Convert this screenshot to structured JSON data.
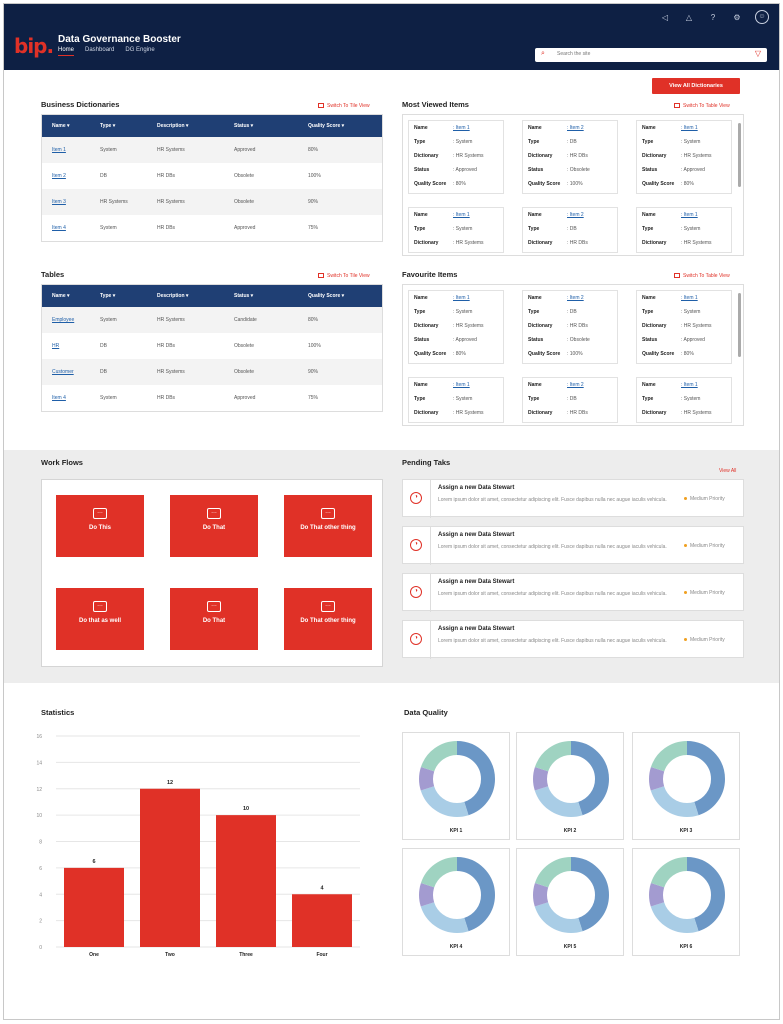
{
  "header": {
    "logo": "bip.",
    "title": "Data Governance Booster",
    "nav": [
      "Home",
      "Dashboard",
      "DG Engine"
    ],
    "search_placeholder": "Search the site",
    "icons": [
      "megaphone-icon",
      "bell-icon",
      "help-icon",
      "gear-icon",
      "user-avatar-icon"
    ]
  },
  "actions": {
    "view_all_dictionaries": "View All Dictionaries",
    "view_all": "View All"
  },
  "switch": {
    "tile": "Switch To Tile View",
    "table": "Switch To Table View"
  },
  "business_dictionaries": {
    "title": "Business Dictionaries",
    "columns": [
      "Name",
      "Type",
      "Description",
      "Status",
      "Quality Score"
    ],
    "rows": [
      [
        "Item 1",
        "System",
        "HR Systems",
        "Approved",
        "80%"
      ],
      [
        "Item 2",
        "DB",
        "HR DBs",
        "Obsolete",
        "100%"
      ],
      [
        "Item 3",
        "HR Systems",
        "HR Systems",
        "Obsolete",
        "90%"
      ],
      [
        "Item 4",
        "System",
        "HR DBs",
        "Approved",
        "75%"
      ]
    ]
  },
  "tables": {
    "title": "Tables",
    "columns": [
      "Name",
      "Type",
      "Description",
      "Status",
      "Quality Score"
    ],
    "rows": [
      [
        "Employee",
        "System",
        "HR Systems",
        "Candidate",
        "80%"
      ],
      [
        "HR",
        "DB",
        "HR DBs",
        "Obsolete",
        "100%"
      ],
      [
        "Customer",
        "DB",
        "HR Systems",
        "Obsolete",
        "90%"
      ],
      [
        "Item 4",
        "System",
        "HR DBs",
        "Approved",
        "75%"
      ]
    ]
  },
  "card_labels": {
    "name": "Name",
    "type": "Type",
    "dictionary": "Dictionary",
    "status": "Status",
    "quality": "Quality Score"
  },
  "most_viewed": {
    "title": "Most Viewed Items",
    "cards": [
      {
        "name": "Item 1",
        "type": "System",
        "dictionary": "HR Systems",
        "status": "Approved",
        "quality": "80%"
      },
      {
        "name": "Item 2",
        "type": "DB",
        "dictionary": "HR DBs",
        "status": "Obsolete",
        "quality": "100%"
      },
      {
        "name": "Item 1",
        "type": "System",
        "dictionary": "HR Systems",
        "status": "Approved",
        "quality": "80%"
      },
      {
        "name": "Item 1",
        "type": "System",
        "dictionary": "HR Systems"
      },
      {
        "name": "Item 2",
        "type": "DB",
        "dictionary": "HR DBs"
      },
      {
        "name": "Item 1",
        "type": "System",
        "dictionary": "HR Systems"
      }
    ]
  },
  "favourites": {
    "title": "Favourite Items",
    "cards": [
      {
        "name": "Item 1",
        "type": "System",
        "dictionary": "HR Systems",
        "status": "Approved",
        "quality": "80%"
      },
      {
        "name": "Item 2",
        "type": "DB",
        "dictionary": "HR DBs",
        "status": "Obsolete",
        "quality": "100%"
      },
      {
        "name": "Item 1",
        "type": "System",
        "dictionary": "HR Systems",
        "status": "Approved",
        "quality": "80%"
      },
      {
        "name": "Item 1",
        "type": "System",
        "dictionary": "HR Systems"
      },
      {
        "name": "Item 2",
        "type": "DB",
        "dictionary": "HR DBs"
      },
      {
        "name": "Item 1",
        "type": "System",
        "dictionary": "HR Systems"
      }
    ]
  },
  "workflows": {
    "title": "Work Flows",
    "tiles": [
      "Do This",
      "Do That",
      "Do That other thing",
      "Do that as well",
      "Do That",
      "Do That other thing"
    ]
  },
  "pending": {
    "title": "Pending Taks",
    "tasks": [
      {
        "title": "Assign a new Data Stewart",
        "desc": "Lorem ipsum dolor sit amet, consectetur adipiscing elit. Fusce dapibus nulla nec augue iaculis vehicula.",
        "priority": "Medium Priority"
      },
      {
        "title": "Assign a new Data Stewart",
        "desc": "Lorem ipsum dolor sit amet, consectetur adipiscing elit. Fusce dapibus nulla nec augue iaculis vehicula.",
        "priority": "Medium Priority"
      },
      {
        "title": "Assign a new Data Stewart",
        "desc": "Lorem ipsum dolor sit amet, consectetur adipiscing elit. Fusce dapibus nulla nec augue iaculis vehicula.",
        "priority": "Medium Priority"
      },
      {
        "title": "Assign a new Data Stewart",
        "desc": "Lorem ipsum dolor sit amet, consectetur adipiscing elit. Fusce dapibus nulla nec augue iaculis vehicula.",
        "priority": "Medium Priority"
      }
    ]
  },
  "statistics": {
    "title": "Statistics"
  },
  "data_quality": {
    "title": "Data Quality",
    "kpis": [
      "KPI 1",
      "KPI 2",
      "KPI 3",
      "KPI 4",
      "KPI 5",
      "KPI 6"
    ],
    "donut_colors": [
      "#6b97c6",
      "#a9cde6",
      "#a39bd0",
      "#9fd3c1"
    ],
    "donut_shares": [
      0.45,
      0.25,
      0.1,
      0.2
    ]
  },
  "colors": {
    "accent": "#e03127",
    "header": "#0e2044",
    "table_head": "#1f3f74",
    "bar": "#e03127"
  },
  "chart_data": {
    "type": "bar",
    "title": "Statistics",
    "categories": [
      "One",
      "Two",
      "Three",
      "Four"
    ],
    "values": [
      6,
      12,
      10,
      4
    ],
    "yticks": [
      0,
      2,
      4,
      6,
      8,
      10,
      12,
      14,
      16
    ],
    "ylim": [
      0,
      16
    ],
    "grid": true
  }
}
